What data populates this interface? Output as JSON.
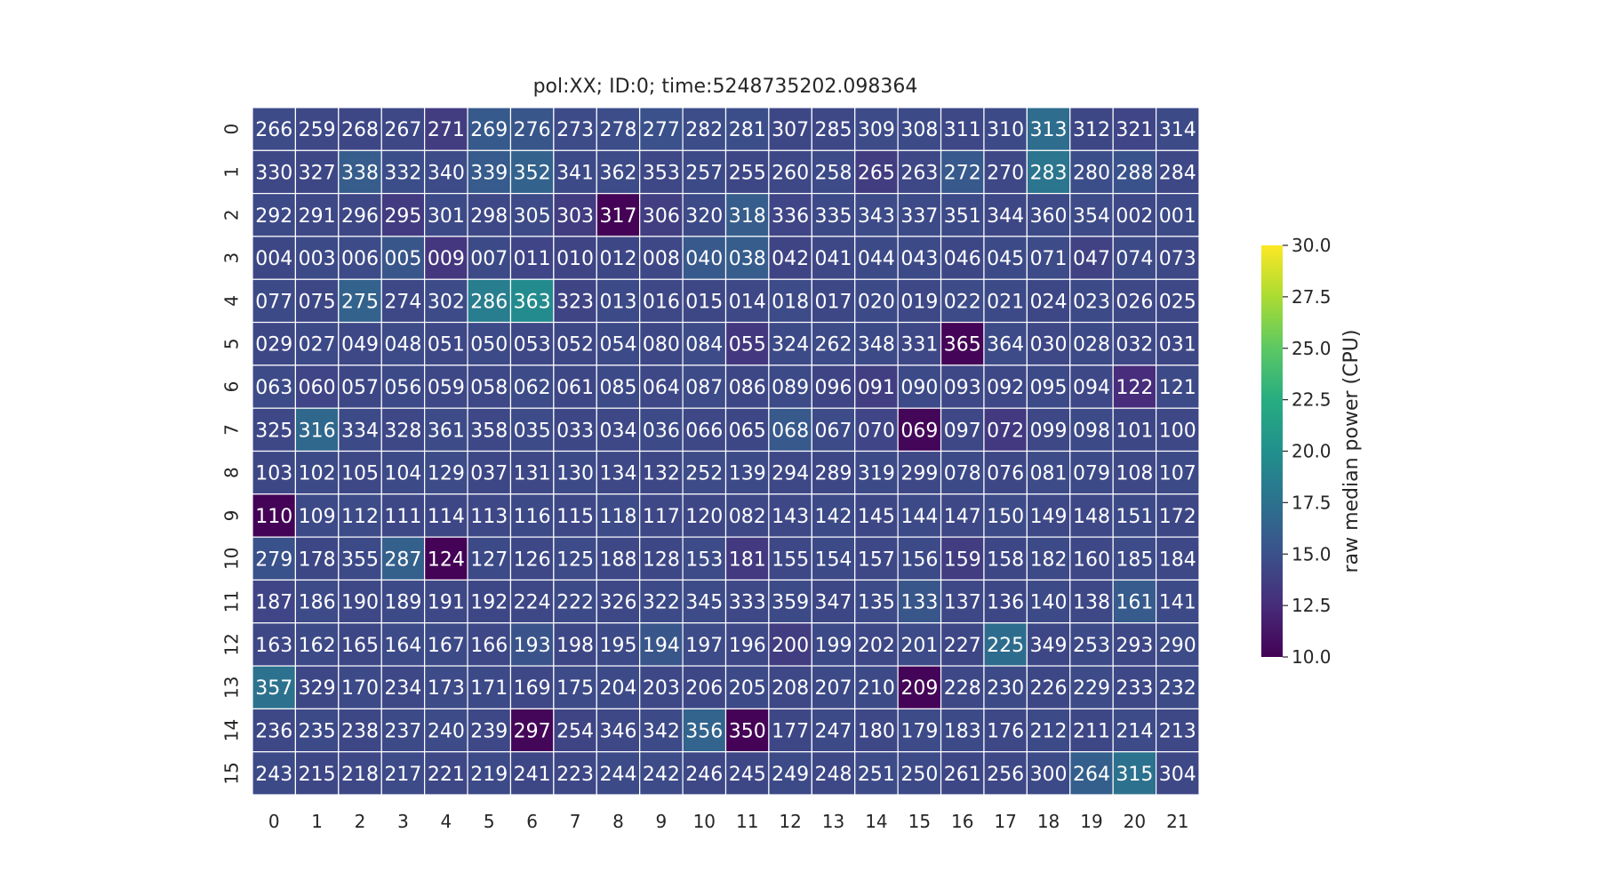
{
  "chart_data": {
    "type": "heatmap",
    "title": "pol:XX; ID:0; time:5248735202.098364",
    "x_ticks": [
      "0",
      "1",
      "2",
      "3",
      "4",
      "5",
      "6",
      "7",
      "8",
      "9",
      "10",
      "11",
      "12",
      "13",
      "14",
      "15",
      "16",
      "17",
      "18",
      "19",
      "20",
      "21"
    ],
    "y_ticks": [
      "0",
      "1",
      "2",
      "3",
      "4",
      "5",
      "6",
      "7",
      "8",
      "9",
      "10",
      "11",
      "12",
      "13",
      "14",
      "15"
    ],
    "cell_labels": [
      [
        "266",
        "259",
        "268",
        "267",
        "271",
        "269",
        "276",
        "273",
        "278",
        "277",
        "282",
        "281",
        "307",
        "285",
        "309",
        "308",
        "311",
        "310",
        "313",
        "312",
        "321",
        "314"
      ],
      [
        "330",
        "327",
        "338",
        "332",
        "340",
        "339",
        "352",
        "341",
        "362",
        "353",
        "257",
        "255",
        "260",
        "258",
        "265",
        "263",
        "272",
        "270",
        "283",
        "280",
        "288",
        "284"
      ],
      [
        "292",
        "291",
        "296",
        "295",
        "301",
        "298",
        "305",
        "303",
        "317",
        "306",
        "320",
        "318",
        "336",
        "335",
        "343",
        "337",
        "351",
        "344",
        "360",
        "354",
        "002",
        "001"
      ],
      [
        "004",
        "003",
        "006",
        "005",
        "009",
        "007",
        "011",
        "010",
        "012",
        "008",
        "040",
        "038",
        "042",
        "041",
        "044",
        "043",
        "046",
        "045",
        "071",
        "047",
        "074",
        "073"
      ],
      [
        "077",
        "075",
        "275",
        "274",
        "302",
        "286",
        "363",
        "323",
        "013",
        "016",
        "015",
        "014",
        "018",
        "017",
        "020",
        "019",
        "022",
        "021",
        "024",
        "023",
        "026",
        "025"
      ],
      [
        "029",
        "027",
        "049",
        "048",
        "051",
        "050",
        "053",
        "052",
        "054",
        "080",
        "084",
        "055",
        "324",
        "262",
        "348",
        "331",
        "365",
        "364",
        "030",
        "028",
        "032",
        "031"
      ],
      [
        "063",
        "060",
        "057",
        "056",
        "059",
        "058",
        "062",
        "061",
        "085",
        "064",
        "087",
        "086",
        "089",
        "096",
        "091",
        "090",
        "093",
        "092",
        "095",
        "094",
        "122",
        "121"
      ],
      [
        "325",
        "316",
        "334",
        "328",
        "361",
        "358",
        "035",
        "033",
        "034",
        "036",
        "066",
        "065",
        "068",
        "067",
        "070",
        "069",
        "097",
        "072",
        "099",
        "098",
        "101",
        "100"
      ],
      [
        "103",
        "102",
        "105",
        "104",
        "129",
        "037",
        "131",
        "130",
        "134",
        "132",
        "252",
        "139",
        "294",
        "289",
        "319",
        "299",
        "078",
        "076",
        "081",
        "079",
        "108",
        "107"
      ],
      [
        "110",
        "109",
        "112",
        "111",
        "114",
        "113",
        "116",
        "115",
        "118",
        "117",
        "120",
        "082",
        "143",
        "142",
        "145",
        "144",
        "147",
        "150",
        "149",
        "148",
        "151",
        "172"
      ],
      [
        "279",
        "178",
        "355",
        "287",
        "124",
        "127",
        "126",
        "125",
        "188",
        "128",
        "153",
        "181",
        "155",
        "154",
        "157",
        "156",
        "159",
        "158",
        "182",
        "160",
        "185",
        "184"
      ],
      [
        "187",
        "186",
        "190",
        "189",
        "191",
        "192",
        "224",
        "222",
        "326",
        "322",
        "345",
        "333",
        "359",
        "347",
        "135",
        "133",
        "137",
        "136",
        "140",
        "138",
        "161",
        "141"
      ],
      [
        "163",
        "162",
        "165",
        "164",
        "167",
        "166",
        "193",
        "198",
        "195",
        "194",
        "197",
        "196",
        "200",
        "199",
        "202",
        "201",
        "227",
        "225",
        "349",
        "253",
        "293",
        "290"
      ],
      [
        "357",
        "329",
        "170",
        "234",
        "173",
        "171",
        "169",
        "175",
        "204",
        "203",
        "206",
        "205",
        "208",
        "207",
        "210",
        "209",
        "228",
        "230",
        "226",
        "229",
        "233",
        "232"
      ],
      [
        "236",
        "235",
        "238",
        "237",
        "240",
        "239",
        "297",
        "254",
        "346",
        "342",
        "356",
        "350",
        "177",
        "247",
        "180",
        "179",
        "183",
        "176",
        "212",
        "211",
        "214",
        "213"
      ],
      [
        "243",
        "215",
        "218",
        "217",
        "221",
        "219",
        "241",
        "223",
        "244",
        "242",
        "246",
        "245",
        "249",
        "248",
        "251",
        "250",
        "261",
        "256",
        "300",
        "264",
        "315",
        "304"
      ]
    ],
    "values": [
      [
        14.6,
        14.4,
        14.3,
        14.4,
        13.6,
        15.7,
        15.4,
        14.6,
        14.7,
        15.0,
        14.7,
        14.8,
        14.3,
        14.4,
        14.6,
        14.5,
        14.4,
        14.5,
        17.2,
        14.3,
        14.2,
        14.5
      ],
      [
        14.4,
        14.3,
        15.9,
        14.8,
        14.6,
        15.8,
        16.4,
        14.5,
        14.6,
        14.4,
        14.5,
        14.3,
        14.4,
        14.6,
        13.6,
        14.4,
        15.6,
        14.4,
        17.8,
        14.8,
        15.1,
        14.4
      ],
      [
        14.5,
        14.4,
        14.3,
        13.5,
        14.5,
        14.4,
        14.6,
        13.6,
        10.1,
        13.7,
        14.5,
        15.9,
        14.2,
        14.5,
        14.6,
        14.5,
        14.5,
        14.3,
        14.5,
        14.6,
        14.4,
        14.5
      ],
      [
        14.3,
        14.5,
        14.6,
        15.4,
        13.2,
        14.5,
        14.2,
        14.1,
        14.3,
        14.4,
        15.6,
        15.9,
        14.1,
        14.4,
        14.5,
        14.5,
        14.3,
        14.5,
        14.6,
        14.0,
        14.5,
        14.4
      ],
      [
        14.5,
        14.3,
        16.3,
        14.4,
        14.6,
        18.5,
        19.6,
        14.1,
        14.5,
        14.4,
        14.3,
        14.4,
        14.6,
        14.3,
        14.5,
        14.4,
        14.6,
        14.5,
        14.3,
        14.5,
        14.4,
        14.4
      ],
      [
        14.3,
        14.5,
        14.4,
        14.6,
        14.4,
        14.5,
        14.4,
        14.3,
        14.5,
        14.3,
        14.6,
        13.3,
        14.5,
        14.6,
        14.5,
        14.4,
        10.2,
        14.6,
        14.4,
        14.5,
        14.4,
        14.3
      ],
      [
        14.6,
        14.2,
        14.3,
        14.5,
        14.4,
        14.4,
        14.6,
        14.3,
        14.5,
        14.4,
        14.6,
        14.3,
        14.5,
        14.1,
        13.7,
        14.5,
        14.4,
        14.4,
        14.5,
        14.4,
        12.6,
        14.5
      ],
      [
        14.4,
        16.8,
        14.5,
        14.4,
        14.6,
        14.4,
        14.6,
        14.3,
        14.4,
        14.5,
        14.4,
        14.3,
        15.6,
        14.6,
        14.2,
        10.3,
        14.4,
        13.4,
        14.4,
        14.5,
        14.3,
        14.4
      ],
      [
        14.3,
        14.5,
        14.4,
        14.5,
        14.6,
        14.3,
        14.4,
        14.5,
        14.4,
        14.3,
        14.6,
        14.5,
        14.4,
        14.3,
        14.5,
        14.4,
        14.5,
        14.3,
        14.6,
        14.5,
        14.4,
        14.5
      ],
      [
        10.1,
        14.5,
        14.6,
        14.4,
        14.3,
        14.4,
        14.5,
        14.4,
        14.6,
        14.4,
        14.3,
        14.4,
        14.4,
        14.5,
        14.3,
        14.5,
        14.4,
        14.6,
        14.4,
        14.4,
        14.5,
        14.3
      ],
      [
        15.1,
        14.3,
        14.5,
        16.2,
        10.1,
        14.5,
        14.4,
        14.6,
        14.4,
        14.3,
        14.6,
        13.4,
        14.4,
        14.5,
        14.4,
        14.5,
        13.6,
        14.3,
        14.5,
        14.4,
        14.6,
        14.4
      ],
      [
        14.2,
        14.6,
        14.4,
        14.5,
        14.4,
        14.3,
        14.4,
        14.5,
        14.4,
        14.5,
        14.6,
        14.4,
        14.5,
        14.3,
        14.6,
        15.4,
        14.4,
        14.3,
        14.5,
        14.4,
        15.8,
        14.5
      ],
      [
        14.4,
        14.5,
        14.3,
        14.6,
        14.5,
        14.4,
        15.2,
        14.3,
        14.5,
        15.4,
        14.6,
        14.4,
        13.6,
        14.5,
        14.4,
        14.6,
        14.3,
        17.1,
        14.3,
        14.5,
        14.4,
        14.6
      ],
      [
        17.6,
        14.3,
        14.5,
        14.4,
        14.6,
        14.5,
        14.4,
        14.6,
        14.5,
        14.4,
        14.3,
        14.5,
        14.4,
        14.5,
        14.5,
        10.2,
        14.4,
        14.5,
        14.3,
        14.6,
        14.4,
        14.5
      ],
      [
        14.4,
        14.5,
        14.3,
        14.5,
        14.6,
        14.4,
        10.3,
        14.1,
        14.4,
        14.5,
        16.5,
        10.1,
        14.3,
        14.5,
        14.4,
        14.6,
        14.5,
        14.4,
        14.5,
        14.3,
        14.6,
        14.4
      ],
      [
        14.5,
        14.3,
        14.4,
        14.6,
        14.4,
        14.5,
        14.3,
        14.4,
        14.5,
        14.6,
        14.4,
        14.3,
        14.5,
        14.4,
        14.6,
        14.5,
        14.3,
        14.4,
        14.5,
        16.1,
        17.5,
        14.4
      ]
    ],
    "colormap": "viridis",
    "vmin": 10.0,
    "vmax": 30.0,
    "colorbar": {
      "label": "raw median power (CPU)",
      "ticks": [
        "10.0",
        "12.5",
        "15.0",
        "17.5",
        "20.0",
        "22.5",
        "25.0",
        "27.5",
        "30.0"
      ],
      "tick_values": [
        10.0,
        12.5,
        15.0,
        17.5,
        20.0,
        22.5,
        25.0,
        27.5,
        30.0
      ]
    },
    "grid": true,
    "cell_border_color": "#ffffff",
    "annotation_color": "#ffffff"
  }
}
